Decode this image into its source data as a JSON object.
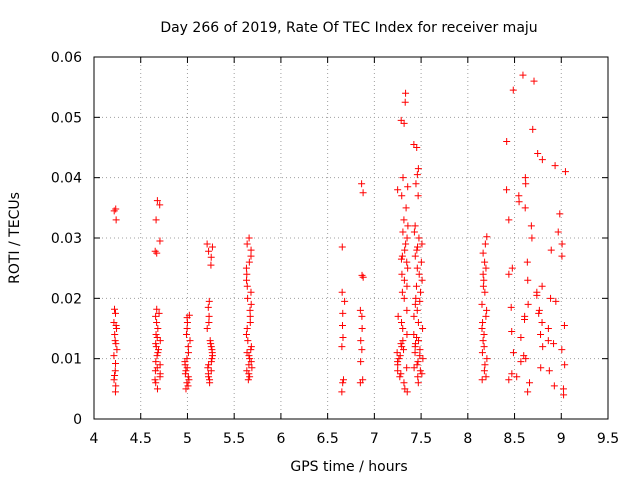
{
  "chart_data": {
    "type": "scatter",
    "title": "Day 266 of 2019, Rate Of TEC Index for receiver maju",
    "xlabel": "GPS time / hours",
    "ylabel": "ROTI / TECUs",
    "xlim": [
      4,
      9.5
    ],
    "ylim": [
      0,
      0.06
    ],
    "x_ticks": [
      "4",
      "4.5",
      "5",
      "5.5",
      "6",
      "6.5",
      "7",
      "7.5",
      "8",
      "8.5",
      "9",
      "9.5"
    ],
    "y_ticks": [
      "0",
      "0.01",
      "0.02",
      "0.03",
      "0.04",
      "0.05",
      "0.06"
    ],
    "grid": true,
    "marker": "+",
    "marker_color": "#ff0000",
    "clusters": [
      {
        "x_center": 4.23,
        "x_spread": 0.02,
        "y_values": [
          0.0045,
          0.0055,
          0.0065,
          0.0072,
          0.008,
          0.0092,
          0.0105,
          0.0115,
          0.0125,
          0.013,
          0.014,
          0.015,
          0.0155,
          0.016,
          0.0175,
          0.0182,
          0.033,
          0.0345,
          0.0348
        ]
      },
      {
        "x_center": 4.68,
        "x_spread": 0.03,
        "y_values": [
          0.005,
          0.006,
          0.0065,
          0.007,
          0.0075,
          0.008,
          0.0085,
          0.009,
          0.0095,
          0.0105,
          0.011,
          0.0115,
          0.012,
          0.0125,
          0.013,
          0.0135,
          0.014,
          0.015,
          0.016,
          0.017,
          0.0175,
          0.0182,
          0.0275,
          0.0278,
          0.0295,
          0.033,
          0.0355,
          0.0362
        ]
      },
      {
        "x_center": 5.0,
        "x_spread": 0.03,
        "y_values": [
          0.005,
          0.0055,
          0.006,
          0.0065,
          0.007,
          0.0075,
          0.008,
          0.0085,
          0.009,
          0.0095,
          0.01,
          0.011,
          0.012,
          0.013,
          0.014,
          0.015,
          0.016,
          0.0168,
          0.0172
        ]
      },
      {
        "x_center": 5.24,
        "x_spread": 0.03,
        "y_values": [
          0.006,
          0.0065,
          0.007,
          0.0075,
          0.008,
          0.0085,
          0.009,
          0.0095,
          0.01,
          0.0105,
          0.011,
          0.0115,
          0.012,
          0.0125,
          0.013,
          0.015,
          0.016,
          0.017,
          0.0185,
          0.0195,
          0.0255,
          0.0268,
          0.0278,
          0.0285,
          0.029
        ]
      },
      {
        "x_center": 5.66,
        "x_spread": 0.03,
        "y_values": [
          0.0065,
          0.007,
          0.0075,
          0.008,
          0.0085,
          0.009,
          0.0095,
          0.01,
          0.0105,
          0.011,
          0.0115,
          0.012,
          0.013,
          0.014,
          0.015,
          0.016,
          0.017,
          0.018,
          0.019,
          0.02,
          0.021,
          0.022,
          0.023,
          0.024,
          0.025,
          0.026,
          0.027,
          0.028,
          0.029,
          0.03
        ]
      },
      {
        "x_center": 6.67,
        "x_spread": 0.02,
        "y_values": [
          0.0045,
          0.006,
          0.0065,
          0.012,
          0.0135,
          0.0155,
          0.0175,
          0.0195,
          0.021,
          0.0285
        ]
      },
      {
        "x_center": 6.87,
        "x_spread": 0.02,
        "y_values": [
          0.006,
          0.0065,
          0.0095,
          0.0115,
          0.013,
          0.015,
          0.017,
          0.018,
          0.0235,
          0.0238,
          0.0375,
          0.039
        ]
      },
      {
        "x_center": 7.3,
        "x_spread": 0.06,
        "y_values": [
          0.0045,
          0.005,
          0.006,
          0.007,
          0.0075,
          0.008,
          0.0085,
          0.009,
          0.0095,
          0.01,
          0.0105,
          0.011,
          0.0115,
          0.012,
          0.0125,
          0.013,
          0.014,
          0.015,
          0.016,
          0.017,
          0.018,
          0.02,
          0.021,
          0.022,
          0.023,
          0.024,
          0.025,
          0.026,
          0.0265,
          0.027,
          0.028,
          0.029,
          0.03,
          0.031,
          0.032,
          0.033,
          0.035,
          0.037,
          0.038,
          0.0385,
          0.04,
          0.049,
          0.0495,
          0.0525,
          0.054
        ]
      },
      {
        "x_center": 7.47,
        "x_spread": 0.05,
        "y_values": [
          0.006,
          0.007,
          0.0075,
          0.008,
          0.0085,
          0.009,
          0.0095,
          0.01,
          0.0105,
          0.011,
          0.0115,
          0.012,
          0.0125,
          0.013,
          0.0135,
          0.014,
          0.015,
          0.016,
          0.017,
          0.018,
          0.019,
          0.0195,
          0.02,
          0.021,
          0.022,
          0.023,
          0.024,
          0.025,
          0.026,
          0.027,
          0.028,
          0.0285,
          0.029,
          0.03,
          0.031,
          0.032,
          0.037,
          0.039,
          0.0405,
          0.0415,
          0.045,
          0.0455
        ]
      },
      {
        "x_center": 8.18,
        "x_spread": 0.03,
        "y_values": [
          0.0065,
          0.007,
          0.008,
          0.009,
          0.01,
          0.011,
          0.012,
          0.013,
          0.014,
          0.015,
          0.016,
          0.017,
          0.018,
          0.019,
          0.021,
          0.022,
          0.023,
          0.024,
          0.025,
          0.026,
          0.0275,
          0.029,
          0.0302
        ]
      },
      {
        "x_center": 8.72,
        "x_spread": 0.34,
        "y_values": [
          0.004,
          0.0045,
          0.005,
          0.0055,
          0.006,
          0.0065,
          0.007,
          0.0075,
          0.008,
          0.0085,
          0.009,
          0.0095,
          0.01,
          0.0105,
          0.011,
          0.0115,
          0.012,
          0.0125,
          0.013,
          0.0135,
          0.014,
          0.0145,
          0.015,
          0.0155,
          0.016,
          0.0165,
          0.017,
          0.0175,
          0.018,
          0.0185,
          0.019,
          0.0195,
          0.02,
          0.0205,
          0.021,
          0.022,
          0.023,
          0.024,
          0.025,
          0.026,
          0.027,
          0.028,
          0.029,
          0.03,
          0.031,
          0.032,
          0.033,
          0.034,
          0.035,
          0.036,
          0.037,
          0.038,
          0.039,
          0.04,
          0.041,
          0.042,
          0.043,
          0.044,
          0.046,
          0.048,
          0.0545,
          0.056,
          0.057
        ]
      }
    ]
  }
}
